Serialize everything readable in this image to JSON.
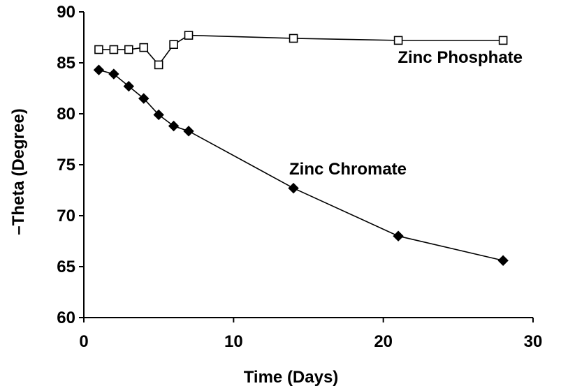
{
  "chart_data": {
    "type": "line",
    "title": "",
    "xlabel": "Time (Days)",
    "ylabel": "–Theta (Degree)",
    "xlim": [
      0,
      30
    ],
    "ylim": [
      60,
      90
    ],
    "xticks": [
      0,
      10,
      20,
      30
    ],
    "yticks": [
      60,
      65,
      70,
      75,
      80,
      85,
      90
    ],
    "grid": false,
    "series": [
      {
        "name": "Zinc Phosphate",
        "marker": "open-square",
        "color": "#000000",
        "x": [
          1,
          2,
          3,
          4,
          5,
          6,
          7,
          14,
          21,
          28
        ],
        "y": [
          86.3,
          86.3,
          86.3,
          86.5,
          84.8,
          86.8,
          87.7,
          87.4,
          87.2,
          87.2
        ]
      },
      {
        "name": "Zinc Chromate",
        "marker": "filled-diamond",
        "color": "#000000",
        "x": [
          1,
          2,
          3,
          4,
          5,
          6,
          7,
          14,
          21,
          28
        ],
        "y": [
          84.3,
          83.9,
          82.7,
          81.5,
          79.9,
          78.8,
          78.3,
          72.7,
          68.0,
          65.6
        ]
      }
    ]
  }
}
